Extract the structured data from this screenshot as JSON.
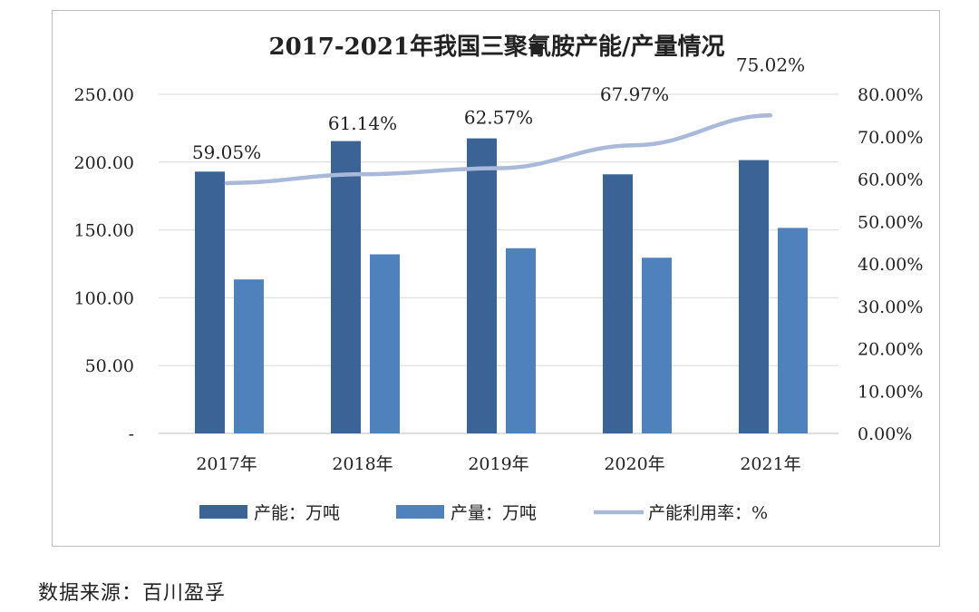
{
  "chart_data": {
    "type": "bar",
    "title": "2017-2021年我国三聚氰胺产能/产量情况",
    "categories": [
      "2017年",
      "2018年",
      "2019年",
      "2020年",
      "2021年"
    ],
    "series": [
      {
        "name": "产能：万吨",
        "type": "bar",
        "axis": "left",
        "color": "#3b6396",
        "values": [
          193,
          215.5,
          217.5,
          191,
          201.5
        ]
      },
      {
        "name": "产量：万吨",
        "type": "bar",
        "axis": "left",
        "color": "#4f81bd",
        "values": [
          113.5,
          132,
          136.5,
          129.5,
          151.5
        ]
      },
      {
        "name": "产能利用率：%",
        "type": "line",
        "axis": "right",
        "color": "#a9b9d9",
        "values": [
          59.05,
          61.14,
          62.57,
          67.97,
          75.02
        ],
        "labels": [
          "59.05%",
          "61.14%",
          "62.57%",
          "67.97%",
          "75.02%"
        ]
      }
    ],
    "left_axis": {
      "ylim": [
        0,
        250
      ],
      "ticks": [
        "-",
        "50.00",
        "100.00",
        "150.00",
        "200.00",
        "250.00"
      ]
    },
    "right_axis": {
      "ylim": [
        0,
        80
      ],
      "ticks": [
        "0.00%",
        "10.00%",
        "20.00%",
        "30.00%",
        "40.00%",
        "50.00%",
        "60.00%",
        "70.00%",
        "80.00%"
      ]
    },
    "grid": true,
    "legend_position": "bottom"
  },
  "source": "数据来源：百川盈孚"
}
